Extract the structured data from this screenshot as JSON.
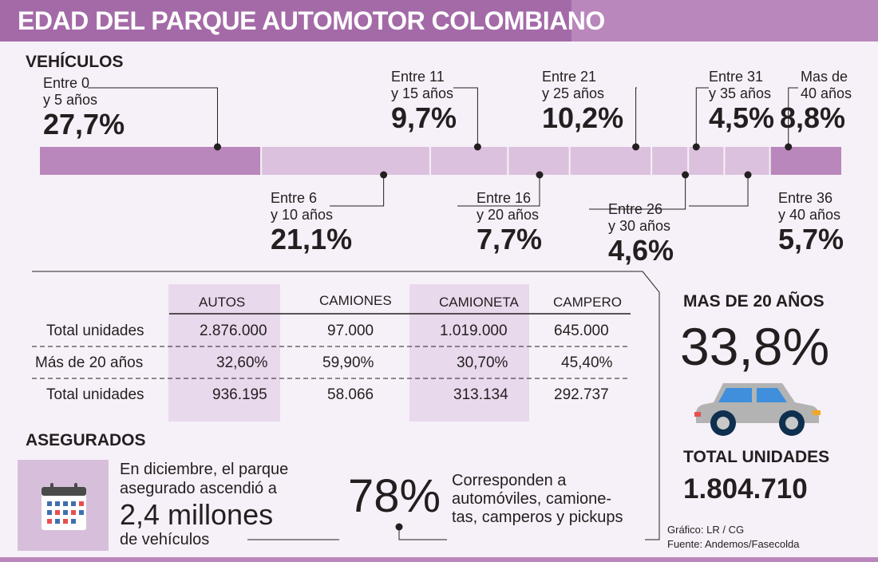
{
  "title": "EDAD DEL PARQUE AUTOMOTOR COLOMBIANO",
  "vehicles_label": "VEHÍCULOS",
  "insured_label": "ASEGURADOS",
  "colors": {
    "title_band": "#a46aa8",
    "bar_primary": "#b987bb",
    "bar_light": "#dcc1de",
    "table_highlight": "#e9d9ec"
  },
  "chart_data": {
    "type": "bar",
    "orientation": "horizontal-stacked",
    "categories": [
      "Entre 0 y 5 años",
      "Entre 6 y 10 años",
      "Entre 11 y 15 años",
      "Entre 16 y 20 años",
      "Entre 21 y 25 años",
      "Entre 26 y 30 años",
      "Entre 31 y 35 años",
      "Entre 36 y 40 años",
      "Mas de 40 años"
    ],
    "values": [
      27.7,
      21.1,
      9.7,
      7.7,
      10.2,
      4.6,
      4.5,
      5.7,
      8.8
    ],
    "labels": [
      {
        "line1": "Entre 0",
        "line2": "y 5 años",
        "pct": "27,7%"
      },
      {
        "line1": "Entre 6",
        "line2": "y 10 años",
        "pct": "21,1%"
      },
      {
        "line1": "Entre 11",
        "line2": "y 15 años",
        "pct": "9,7%"
      },
      {
        "line1": "Entre 16",
        "line2": "y 20 años",
        "pct": "7,7%"
      },
      {
        "line1": "Entre 21",
        "line2": "y 25 años",
        "pct": "10,2%"
      },
      {
        "line1": "Entre 26",
        "line2": "y 30 años",
        "pct": "4,6%"
      },
      {
        "line1": "Entre 31",
        "line2": "y 35 años",
        "pct": "4,5%"
      },
      {
        "line1": "Entre 36",
        "line2": "y 40 años",
        "pct": "5,7%"
      },
      {
        "line1": "Mas de",
        "line2": "40 años",
        "pct": "8,8%"
      }
    ],
    "title": "",
    "xlabel": "",
    "ylabel": ""
  },
  "table": {
    "headers": [
      "AUTOS",
      "CAMIONES",
      "CAMIONETA",
      "CAMPERO"
    ],
    "rows": [
      {
        "label": "Total unidades",
        "values": [
          "2.876.000",
          "97.000",
          "1.019.000",
          "645.000"
        ]
      },
      {
        "label": "Más de 20 años",
        "values": [
          "32,60%",
          "59,90%",
          "30,70%",
          "45,40%"
        ]
      },
      {
        "label": "Total unidades",
        "values": [
          "936.195",
          "58.066",
          "313.134",
          "292.737"
        ]
      }
    ]
  },
  "summary": {
    "over20_label": "MAS DE 20 AÑOS",
    "over20_pct": "33,8%",
    "total_label": "TOTAL UNIDADES",
    "total_value": "1.804.710"
  },
  "insured": {
    "line1": "En diciembre, el parque",
    "line2": "asegurado ascendió a",
    "highlight": "2,4 millones",
    "line3": "de vehículos",
    "pct": "78%",
    "desc1": "Corresponden a",
    "desc2": "automóviles, camione-",
    "desc3": "tas, camperos y pickups"
  },
  "credits": {
    "graphic": "Gráfico: LR / CG",
    "source": "Fuente: Andemos/Fasecolda"
  }
}
